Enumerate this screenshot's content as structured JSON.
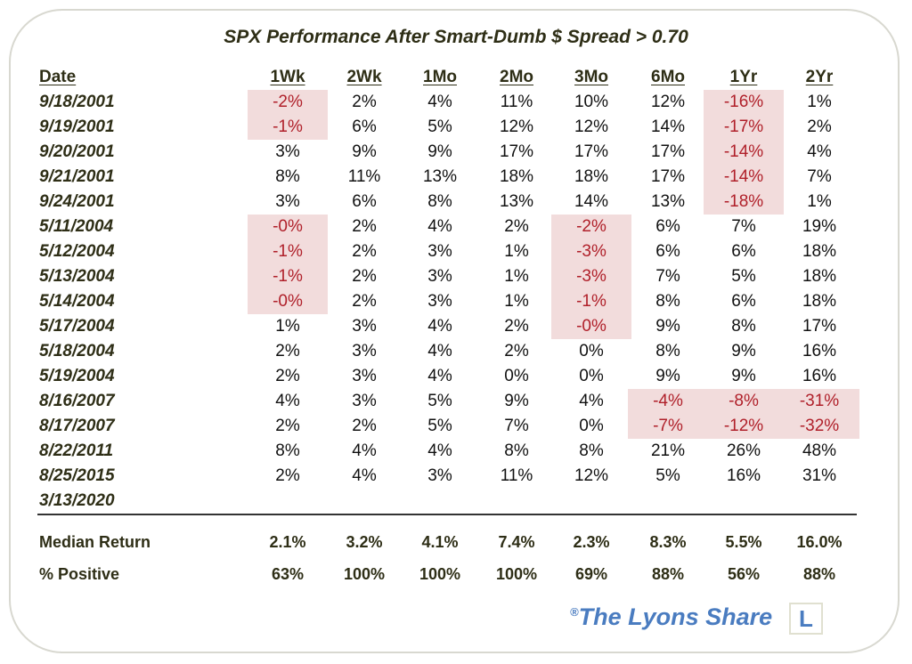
{
  "chart_data": {
    "type": "table",
    "title": "SPX Performance After Smart-Dumb $ Spread > 0.70",
    "date_header": "Date",
    "columns": [
      "1Wk",
      "2Wk",
      "1Mo",
      "2Mo",
      "3Mo",
      "6Mo",
      "1Yr",
      "2Yr"
    ],
    "rows": [
      {
        "date": "9/18/2001",
        "values": [
          "-2%",
          "2%",
          "4%",
          "11%",
          "10%",
          "12%",
          "-16%",
          "1%"
        ]
      },
      {
        "date": "9/19/2001",
        "values": [
          "-1%",
          "6%",
          "5%",
          "12%",
          "12%",
          "14%",
          "-17%",
          "2%"
        ]
      },
      {
        "date": "9/20/2001",
        "values": [
          "3%",
          "9%",
          "9%",
          "17%",
          "17%",
          "17%",
          "-14%",
          "4%"
        ]
      },
      {
        "date": "9/21/2001",
        "values": [
          "8%",
          "11%",
          "13%",
          "18%",
          "18%",
          "17%",
          "-14%",
          "7%"
        ]
      },
      {
        "date": "9/24/2001",
        "values": [
          "3%",
          "6%",
          "8%",
          "13%",
          "14%",
          "13%",
          "-18%",
          "1%"
        ]
      },
      {
        "date": "5/11/2004",
        "values": [
          "-0%",
          "2%",
          "4%",
          "2%",
          "-2%",
          "6%",
          "7%",
          "19%"
        ]
      },
      {
        "date": "5/12/2004",
        "values": [
          "-1%",
          "2%",
          "3%",
          "1%",
          "-3%",
          "6%",
          "6%",
          "18%"
        ]
      },
      {
        "date": "5/13/2004",
        "values": [
          "-1%",
          "2%",
          "3%",
          "1%",
          "-3%",
          "7%",
          "5%",
          "18%"
        ]
      },
      {
        "date": "5/14/2004",
        "values": [
          "-0%",
          "2%",
          "3%",
          "1%",
          "-1%",
          "8%",
          "6%",
          "18%"
        ]
      },
      {
        "date": "5/17/2004",
        "values": [
          "1%",
          "3%",
          "4%",
          "2%",
          "-0%",
          "9%",
          "8%",
          "17%"
        ]
      },
      {
        "date": "5/18/2004",
        "values": [
          "2%",
          "3%",
          "4%",
          "2%",
          "0%",
          "8%",
          "9%",
          "16%"
        ]
      },
      {
        "date": "5/19/2004",
        "values": [
          "2%",
          "3%",
          "4%",
          "0%",
          "0%",
          "9%",
          "9%",
          "16%"
        ]
      },
      {
        "date": "8/16/2007",
        "values": [
          "4%",
          "3%",
          "5%",
          "9%",
          "4%",
          "-4%",
          "-8%",
          "-31%"
        ]
      },
      {
        "date": "8/17/2007",
        "values": [
          "2%",
          "2%",
          "5%",
          "7%",
          "0%",
          "-7%",
          "-12%",
          "-32%"
        ]
      },
      {
        "date": "8/22/2011",
        "values": [
          "8%",
          "4%",
          "4%",
          "8%",
          "8%",
          "21%",
          "26%",
          "48%"
        ]
      },
      {
        "date": "8/25/2015",
        "values": [
          "2%",
          "4%",
          "3%",
          "11%",
          "12%",
          "5%",
          "16%",
          "31%"
        ]
      },
      {
        "date": "3/13/2020",
        "values": [
          "",
          "",
          "",
          "",
          "",
          "",
          "",
          ""
        ]
      }
    ],
    "summary": [
      {
        "label": "Median Return",
        "values": [
          "2.1%",
          "3.2%",
          "4.1%",
          "7.4%",
          "2.3%",
          "8.3%",
          "5.5%",
          "16.0%"
        ]
      },
      {
        "label": "% Positive",
        "values": [
          "63%",
          "100%",
          "100%",
          "100%",
          "69%",
          "88%",
          "56%",
          "88%"
        ]
      }
    ]
  },
  "brand": {
    "mark": "®",
    "name": "The Lyons Share",
    "logo_letter": "L"
  },
  "colors": {
    "negative_text": "#b0202a",
    "negative_fill": "#f2dcdc",
    "brand": "#4a7cc0"
  }
}
